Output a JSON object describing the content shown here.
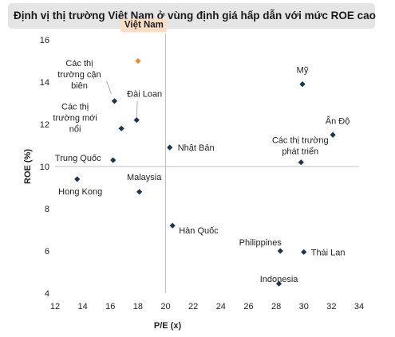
{
  "chart_data": {
    "type": "scatter",
    "title": "Định vị thị trường Việt Nam ở vùng định giá hấp dẫn với mức ROE cao",
    "xlabel": "P/E (x)",
    "ylabel": "ROE (%)",
    "xlim": [
      12,
      34
    ],
    "ylim": [
      4,
      16
    ],
    "xticks": [
      12,
      14,
      16,
      18,
      20,
      22,
      24,
      26,
      28,
      30,
      32,
      34
    ],
    "yticks": [
      4,
      6,
      8,
      10,
      12,
      14,
      16
    ],
    "reference_lines": {
      "x": 20,
      "y": 10
    },
    "grid": false,
    "marker_color": "#1b3550",
    "highlight_color": "#ec8a2e",
    "highlight_label_bg": "#f9ddc4",
    "points": [
      {
        "label": "Việt Nam",
        "x": 18.0,
        "y": 15.0,
        "highlight": true
      },
      {
        "label": "Các thị trường cận biên",
        "x": 16.3,
        "y": 13.1
      },
      {
        "label": "Đài Loan",
        "x": 17.9,
        "y": 12.2
      },
      {
        "label": "Các thị trường mới nổi",
        "x": 16.8,
        "y": 11.8
      },
      {
        "label": "Trung Quốc",
        "x": 16.2,
        "y": 10.3
      },
      {
        "label": "Hong Kong",
        "x": 13.6,
        "y": 9.4
      },
      {
        "label": "Malaysia",
        "x": 18.1,
        "y": 8.8
      },
      {
        "label": "Nhật Bản",
        "x": 20.3,
        "y": 10.9
      },
      {
        "label": "Hàn Quốc",
        "x": 20.5,
        "y": 7.2
      },
      {
        "label": "Mỹ",
        "x": 29.9,
        "y": 13.9
      },
      {
        "label": "Ấn Độ",
        "x": 32.1,
        "y": 11.5
      },
      {
        "label": "Các thị trường phát triển",
        "x": 29.8,
        "y": 10.2
      },
      {
        "label": "Philippines",
        "x": 28.3,
        "y": 6.0
      },
      {
        "label": "Thái Lan",
        "x": 30.0,
        "y": 5.95
      },
      {
        "label": "Indonesia",
        "x": 28.2,
        "y": 4.45
      }
    ]
  }
}
